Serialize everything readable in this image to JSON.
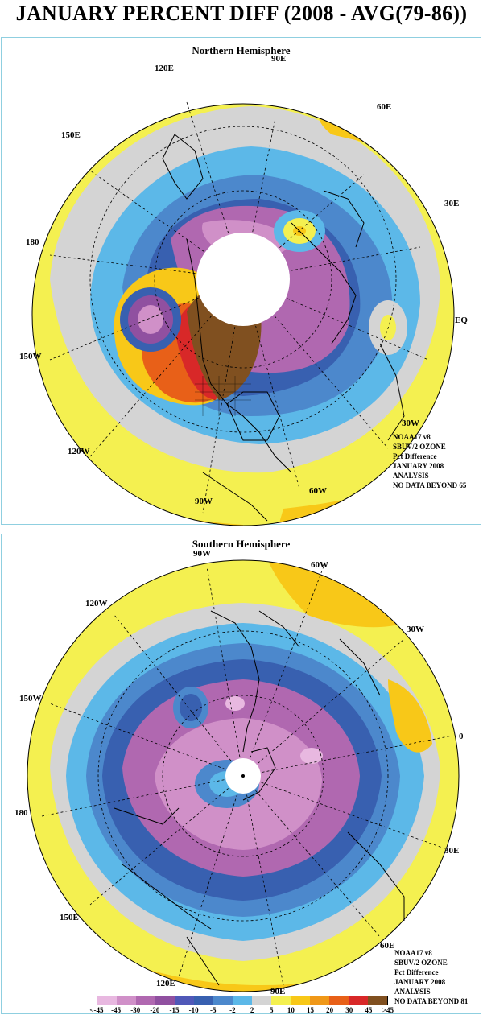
{
  "title": "JANUARY PERCENT DIFF (2008 - AVG(79-86))",
  "north": {
    "title": "Northern Hemisphere",
    "labels": {
      "e90": "90E",
      "e120": "120E",
      "e60": "60E",
      "e150": "150E",
      "e30": "30E",
      "d180": "180",
      "eq": "EQ",
      "w150": "150W",
      "w30": "30W",
      "w120": "120W",
      "w60": "60W",
      "w90": "90W"
    },
    "info": [
      "NOAA17 v8",
      "SBUV/2 OZONE",
      "Pct Difference",
      "JANUARY 2008",
      "ANALYSIS",
      "NO DATA BEYOND  65"
    ]
  },
  "south": {
    "title": "Southern Hemisphere",
    "labels": {
      "w90": "90W",
      "w60": "60W",
      "w120": "120W",
      "w30": "30W",
      "w150": "150W",
      "zero": "0",
      "d180": "180",
      "e30": "30E",
      "e150": "150E",
      "e60": "60E",
      "e120": "120E",
      "e90": "90E"
    },
    "info": [
      "NOAA17 v8",
      "SBUV/2 OZONE",
      "Pct Difference",
      "JANUARY 2008",
      "ANALYSIS",
      "NO DATA BEYOND  81"
    ]
  },
  "colorbar": {
    "ticks": [
      "<-45",
      "-45",
      "-30",
      "-20",
      "-15",
      "-10",
      "-5",
      "-2",
      "2",
      "5",
      "10",
      "15",
      "20",
      "30",
      "45",
      ">45"
    ],
    "colors": [
      "#e8b8e0",
      "#d090c8",
      "#b068b0",
      "#9050a0",
      "#5058b8",
      "#3860b0",
      "#4c88cc",
      "#5cb8e8",
      "#d4d4d4",
      "#f4f050",
      "#f8c818",
      "#f09818",
      "#e86018",
      "#d82828",
      "#805020"
    ]
  }
}
